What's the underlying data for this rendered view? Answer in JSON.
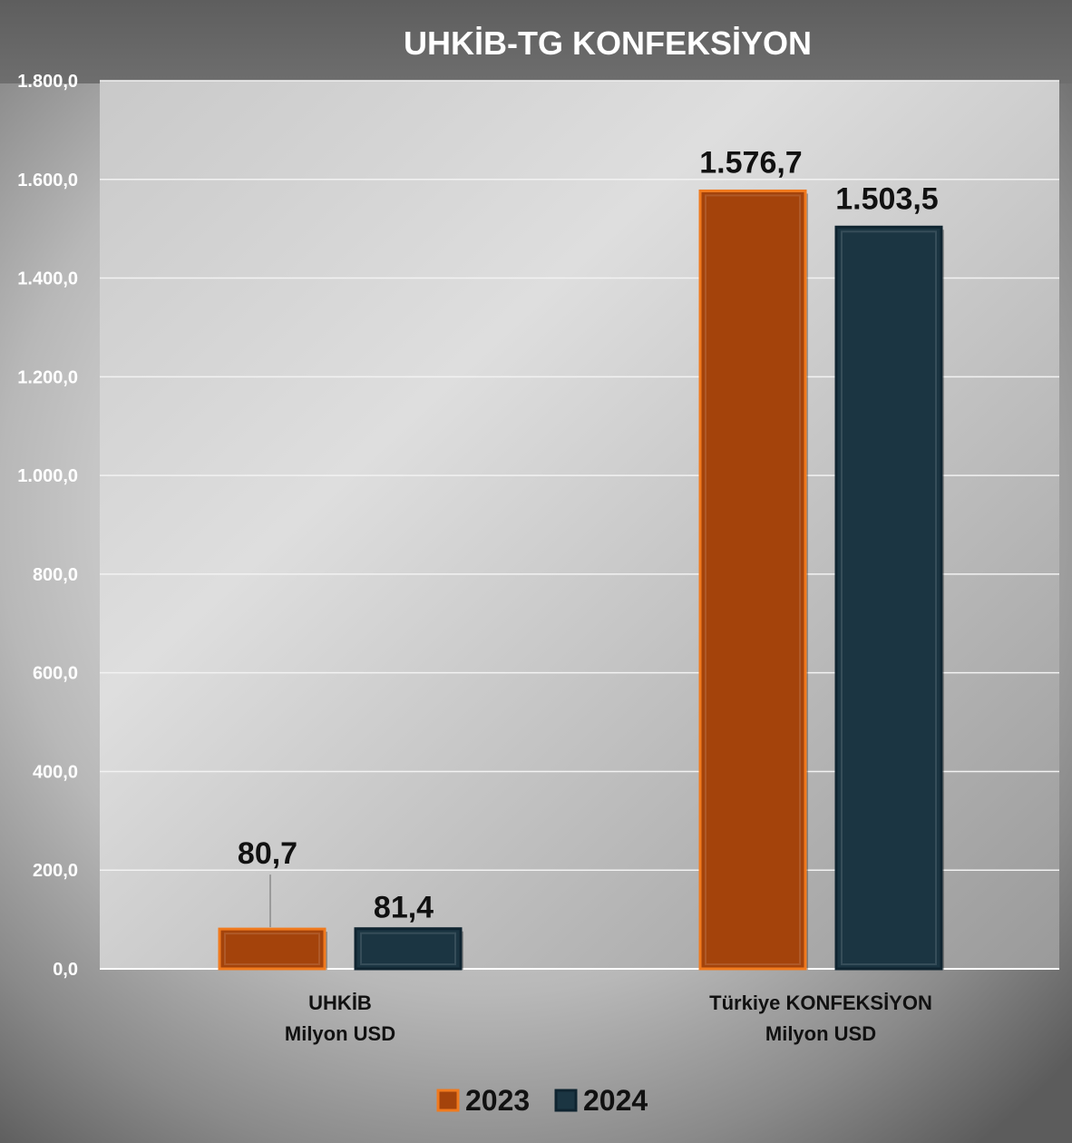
{
  "chart_data": {
    "type": "bar",
    "title": "UHKİB-TG KONFEKSİYON",
    "categories": [
      [
        "UHKİB",
        "Milyon USD"
      ],
      [
        "Türkiye KONFEKSİYON",
        "Milyon USD"
      ]
    ],
    "series": [
      {
        "name": "2023",
        "values": [
          80.7,
          1576.7
        ],
        "labels": [
          "80,7",
          "1.576,7"
        ],
        "color": "#a4430b",
        "edge": "#f07a1e"
      },
      {
        "name": "2024",
        "values": [
          81.4,
          1503.5
        ],
        "labels": [
          "81,4",
          "1.503,5"
        ],
        "color": "#1b3542",
        "edge": "#0f2430"
      }
    ],
    "ylim": [
      0,
      1800
    ],
    "yticks": [
      0,
      200,
      400,
      600,
      800,
      1000,
      1200,
      1400,
      1600,
      1800
    ],
    "ytick_labels": [
      "0,0",
      "200,0",
      "400,0",
      "600,0",
      "800,0",
      "1.000,0",
      "1.200,0",
      "1.400,0",
      "1.600,0",
      "1.800,0"
    ],
    "grid": true,
    "legend_position": "bottom"
  }
}
